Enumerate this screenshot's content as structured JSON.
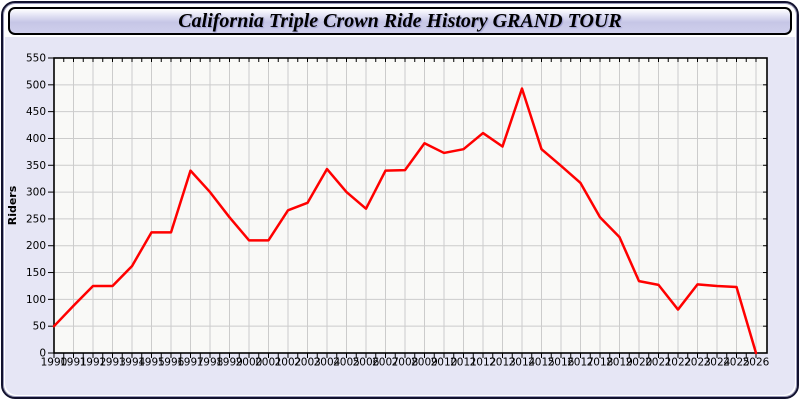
{
  "window": {
    "title": "California Triple Crown Ride History GRAND TOUR"
  },
  "chart_data": {
    "type": "line",
    "title": "California Triple Crown Ride History GRAND TOUR",
    "xlabel": "",
    "ylabel": "Riders",
    "x": [
      1990,
      1991,
      1992,
      1993,
      1994,
      1995,
      1996,
      1997,
      1998,
      1999,
      2000,
      2001,
      2002,
      2003,
      2004,
      2005,
      2006,
      2007,
      2008,
      2009,
      2010,
      2011,
      2012,
      2013,
      2014,
      2015,
      2016,
      2017,
      2018,
      2019,
      2020,
      2021,
      2022,
      2023,
      2024,
      2025,
      2026
    ],
    "series": [
      {
        "name": "Riders",
        "color": "#ff0000",
        "values": [
          50,
          88,
          125,
          125,
          162,
          225,
          225,
          340,
          300,
          253,
          210,
          210,
          266,
          280,
          343,
          300,
          269,
          340,
          341,
          391,
          373,
          380,
          410,
          385,
          493,
          380,
          349,
          317,
          253,
          216,
          134,
          127,
          81,
          128,
          125,
          123,
          0
        ]
      }
    ],
    "ylim": [
      0,
      550
    ],
    "ytick_step": 50,
    "yticks": [
      0,
      50,
      100,
      150,
      200,
      250,
      300,
      350,
      400,
      450,
      500,
      550
    ],
    "grid": true,
    "legend_position": "none"
  },
  "theme": {
    "page_background": "#e6e6f5",
    "plot_background": "#f9f9f7",
    "grid_color": "#cccccc",
    "axis_color": "#000000",
    "line_color": "#ff0000",
    "frame_border_color": "#12122e",
    "titlebar_gradient_bottom": "#c6c6e6"
  }
}
